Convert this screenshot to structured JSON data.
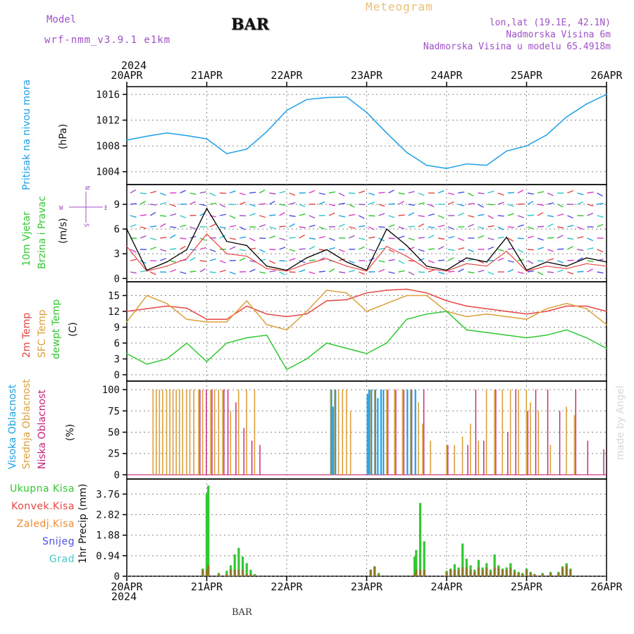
{
  "header": {
    "model_label": "Model",
    "model_name": "wrf-nmm_v3.9.1 e1km",
    "station": "BAR",
    "title": "Meteogram",
    "coords": "lon,lat (19.1E, 42.1N)",
    "elevation": "Nadmorska Visina 6m",
    "model_elevation": "Nadmorska Visina u modelu 65.4918m"
  },
  "footer": {
    "station": "BAR",
    "credit": "made by Angel",
    "year": "2024"
  },
  "colors": {
    "pressure": "#1ea0e6",
    "temp2m": "#e64646",
    "sfc_temp": "#dca03c",
    "dewpoint": "#32c832",
    "cloud_high": "#1ea0e6",
    "cloud_mid": "#dca03c",
    "cloud_low": "#c81e78",
    "precip_total": "#32c832",
    "precip_conv": "#e64646",
    "precip_frz": "#f08c32",
    "precip_snow": "#5050e6",
    "precip_grad": "#46c8c8",
    "label_purple": "#a050c8"
  },
  "panel_labels": {
    "pressure": [
      "Pritisak na nivou mora"
    ],
    "pressure_unit": "(hPa)",
    "wind": [
      "10m Vjetar",
      "Brzina i Pravac"
    ],
    "wind_unit": "(m/s)",
    "compass": {
      "n": "N",
      "s": "S",
      "e": "E",
      "w": "W"
    },
    "temp": [
      "2m Temp",
      "SFC Temp",
      "dewpt Temp"
    ],
    "temp_unit": "(C)",
    "cloud": [
      "Visoka Oblacnost",
      "Srednja Oblacnost",
      "Niska Oblacnost"
    ],
    "cloud_unit": "(%)",
    "precip_unit": "1hr Precip (mm)",
    "precip_legend": [
      "Ukupna Kisa",
      "Konvek.Kisa",
      "Zaledj.Kisa",
      "Snijeg",
      "Grad"
    ]
  },
  "chart_data": [
    {
      "type": "line",
      "panel": "pressure",
      "x_labels": [
        "20APR",
        "21APR",
        "22APR",
        "23APR",
        "24APR",
        "25APR",
        "26APR"
      ],
      "x": [
        0,
        0.25,
        0.5,
        0.75,
        1.0,
        1.25,
        1.5,
        1.75,
        2.0,
        2.25,
        2.5,
        2.75,
        3.0,
        3.25,
        3.5,
        3.75,
        4.0,
        4.25,
        4.5,
        4.75,
        5.0,
        5.25,
        5.5,
        5.75,
        6.0
      ],
      "series": [
        {
          "values": [
            1008.9,
            1009.5,
            1010.0,
            1009.6,
            1009.1,
            1006.8,
            1007.5,
            1010.2,
            1013.5,
            1015.2,
            1015.5,
            1015.6,
            1013.2,
            1010.0,
            1007.0,
            1005.0,
            1004.5,
            1005.2,
            1005.0,
            1007.2,
            1008.0,
            1009.7,
            1012.5,
            1014.5,
            1016.0
          ]
        }
      ],
      "yticks": [
        1004,
        1008,
        1012,
        1016
      ],
      "ylim": [
        1002,
        1017.2
      ]
    },
    {
      "type": "line",
      "panel": "wind",
      "x": [
        0,
        0.25,
        0.5,
        0.75,
        1.0,
        1.25,
        1.5,
        1.75,
        2.0,
        2.25,
        2.5,
        2.75,
        3.0,
        3.25,
        3.5,
        3.75,
        4.0,
        4.25,
        4.5,
        4.75,
        5.0,
        5.25,
        5.5,
        5.75,
        6.0
      ],
      "series": [
        {
          "values": [
            6.0,
            1.0,
            2.0,
            3.5,
            8.5,
            4.5,
            4.0,
            1.5,
            1.0,
            2.5,
            3.5,
            2.0,
            1.0,
            6.0,
            4.0,
            1.5,
            1.0,
            2.5,
            2.0,
            5.0,
            1.0,
            2.0,
            1.5,
            2.5,
            2.0
          ]
        }
      ],
      "yticks": [
        0,
        3,
        6,
        9
      ],
      "ylim": [
        -0.4,
        11.4
      ]
    },
    {
      "type": "line",
      "panel": "temperature",
      "x": [
        0,
        0.25,
        0.5,
        0.75,
        1.0,
        1.25,
        1.5,
        1.75,
        2.0,
        2.25,
        2.5,
        2.75,
        3.0,
        3.25,
        3.5,
        3.75,
        4.0,
        4.25,
        4.5,
        4.75,
        5.0,
        5.25,
        5.5,
        5.75,
        6.0
      ],
      "series": [
        {
          "values": [
            12.0,
            12.5,
            13.0,
            12.6,
            10.5,
            10.5,
            13.0,
            11.5,
            11.0,
            11.5,
            14.0,
            14.2,
            15.5,
            16.0,
            16.2,
            15.5,
            14.0,
            13.0,
            12.5,
            12.0,
            11.5,
            12.0,
            13.0,
            13.0,
            12.0
          ]
        },
        {
          "values": [
            10.0,
            15.0,
            13.5,
            10.5,
            10.0,
            10.0,
            14.0,
            9.5,
            8.5,
            12.0,
            16.0,
            15.5,
            12.0,
            13.5,
            15.0,
            15.0,
            12.0,
            11.0,
            11.5,
            11.0,
            10.5,
            12.5,
            13.5,
            12.5,
            9.5
          ]
        },
        {
          "values": [
            4.0,
            2.0,
            3.0,
            6.0,
            2.5,
            6.0,
            7.0,
            7.5,
            1.0,
            3.0,
            6.0,
            5.0,
            4.0,
            6.0,
            10.5,
            11.5,
            12.0,
            8.5,
            8.0,
            7.5,
            7.0,
            7.5,
            8.5,
            7.0,
            5.0
          ]
        }
      ],
      "yticks": [
        0,
        3,
        6,
        9,
        12,
        15
      ],
      "ylim": [
        -1.2,
        17.6
      ]
    },
    {
      "type": "bar",
      "panel": "cloud",
      "yticks": [
        0,
        25,
        50,
        75,
        100
      ],
      "ylim": [
        -5,
        110
      ],
      "x_high": [
        2.55,
        2.57,
        2.6,
        3.0,
        3.02,
        3.05,
        3.1,
        3.13,
        3.17,
        3.2,
        3.5,
        3.55,
        3.6
      ],
      "high": [
        100,
        80,
        100,
        95,
        100,
        100,
        100,
        90,
        100,
        100,
        100,
        100,
        100
      ],
      "x_mid": [
        0.33,
        0.37,
        0.41,
        0.45,
        0.5,
        0.54,
        0.58,
        0.62,
        0.66,
        0.7,
        0.75,
        0.79,
        0.84,
        0.9,
        0.95,
        1.05,
        1.1,
        1.15,
        1.2,
        1.3,
        1.4,
        1.5,
        1.6,
        2.55,
        2.6,
        2.65,
        2.7,
        2.75,
        2.8,
        3.05,
        3.1,
        3.25,
        3.35,
        3.45,
        3.55,
        3.65,
        3.7,
        3.8,
        4.0,
        4.1,
        4.2,
        4.3,
        4.4,
        4.5,
        4.6,
        4.7,
        4.8,
        4.9,
        5.0,
        5.05,
        5.15,
        5.3,
        5.5,
        5.6
      ],
      "mid": [
        100,
        100,
        100,
        100,
        100,
        100,
        100,
        100,
        100,
        100,
        100,
        100,
        100,
        100,
        100,
        100,
        100,
        100,
        100,
        75,
        100,
        100,
        100,
        100,
        100,
        100,
        100,
        100,
        75,
        100,
        100,
        100,
        100,
        100,
        100,
        85,
        60,
        40,
        35,
        35,
        45,
        60,
        40,
        100,
        100,
        100,
        100,
        100,
        100,
        85,
        75,
        35,
        80,
        70
      ],
      "x_low": [
        0.9,
        0.98,
        1.05,
        1.2,
        1.25,
        1.35,
        1.45,
        1.55,
        1.65,
        3.25,
        3.35,
        3.45,
        3.55,
        3.7,
        4.0,
        4.25,
        4.35,
        4.45,
        4.6,
        4.75,
        4.85,
        5.0,
        5.1,
        5.25,
        5.4,
        5.6,
        5.75,
        5.95
      ],
      "low": [
        100,
        100,
        100,
        100,
        100,
        85,
        55,
        40,
        35,
        100,
        100,
        100,
        100,
        100,
        35,
        35,
        100,
        40,
        100,
        50,
        100,
        75,
        100,
        100,
        75,
        100,
        40,
        30
      ]
    },
    {
      "type": "bar",
      "panel": "precip",
      "yticks": [
        0,
        0.94,
        1.88,
        2.82,
        3.76
      ],
      "ylim": [
        0,
        4.45
      ],
      "x": [
        0.95,
        1.0,
        1.02,
        1.15,
        1.25,
        1.3,
        1.35,
        1.4,
        1.45,
        1.5,
        1.55,
        1.6,
        3.05,
        3.1,
        3.15,
        3.6,
        3.62,
        3.67,
        3.72,
        4.0,
        4.05,
        4.1,
        4.15,
        4.2,
        4.25,
        4.3,
        4.35,
        4.4,
        4.45,
        4.5,
        4.55,
        4.6,
        4.65,
        4.7,
        4.75,
        4.8,
        4.85,
        4.9,
        4.95,
        5.0,
        5.05,
        5.1,
        5.2,
        5.3,
        5.4,
        5.45,
        5.5,
        5.55
      ],
      "total": [
        0.35,
        3.8,
        4.15,
        0.15,
        0.25,
        0.5,
        1.0,
        1.3,
        0.9,
        0.6,
        0.3,
        0.1,
        0.3,
        0.45,
        0.15,
        0.9,
        1.2,
        3.35,
        1.6,
        0.25,
        0.35,
        0.55,
        0.4,
        1.5,
        0.8,
        0.5,
        0.3,
        0.75,
        0.4,
        0.6,
        0.3,
        1.0,
        0.5,
        0.35,
        0.4,
        0.6,
        0.3,
        0.2,
        0.15,
        0.35,
        0.2,
        0.1,
        0.15,
        0.2,
        0.2,
        0.45,
        0.6,
        0.35
      ],
      "conv": [
        0.3,
        0.3,
        0.5,
        0.1,
        0.1,
        0.3,
        0.3,
        0.3,
        0.3,
        0.1,
        0.1,
        0.05,
        0.3,
        0.45,
        0.1,
        0.1,
        0.3,
        0.3,
        0.3,
        0.2,
        0.3,
        0.3,
        0.3,
        0.4,
        0.4,
        0.3,
        0.2,
        0.4,
        0.3,
        0.4,
        0.2,
        0.4,
        0.4,
        0.3,
        0.3,
        0.4,
        0.2,
        0.15,
        0.1,
        0.3,
        0.15,
        0.1,
        0.1,
        0.15,
        0.15,
        0.4,
        0.5,
        0.3
      ]
    }
  ]
}
